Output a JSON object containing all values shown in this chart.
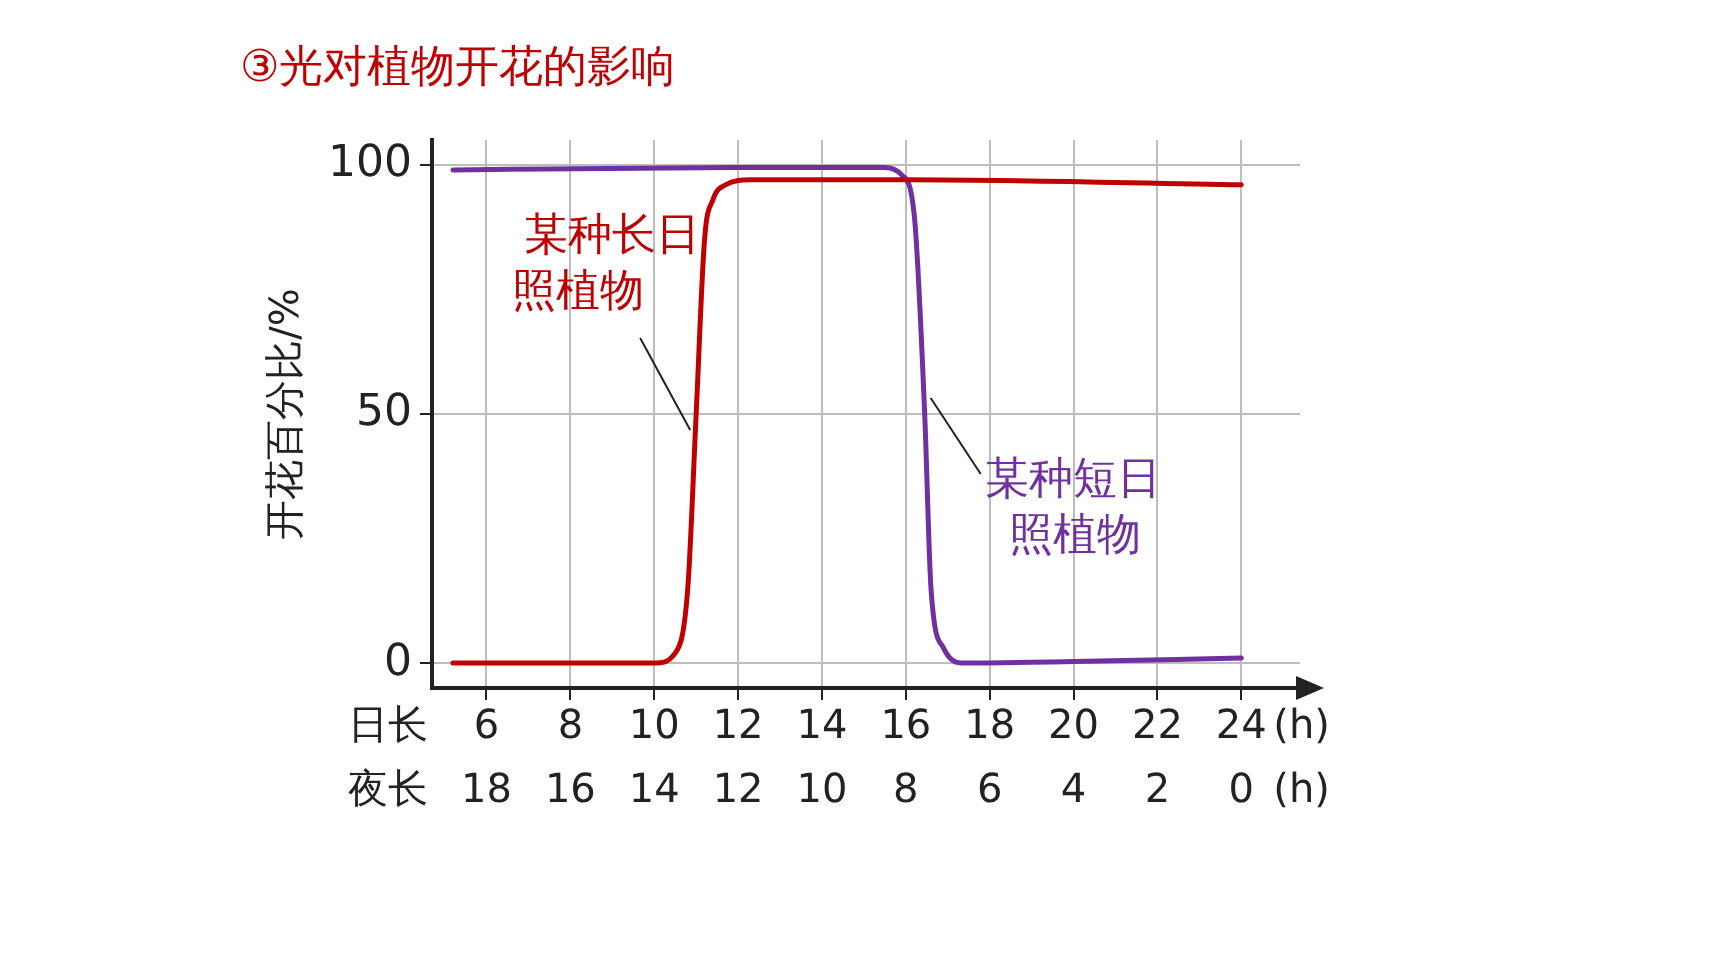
{
  "chart_data": {
    "type": "line",
    "title": "③光对植物开花的影响",
    "xlabel": "日长",
    "x2label": "夜长",
    "ylabel": "开花百分比/%",
    "annotations": [
      "(h)",
      "(h)"
    ],
    "xlim": [
      4.7,
      25.4
    ],
    "xticks": [
      6,
      8,
      10,
      12,
      14,
      16,
      18,
      20,
      22,
      24
    ],
    "x2lim": [
      19.3,
      -1.4
    ],
    "x2ticks": [
      18,
      16,
      14,
      12,
      10,
      8,
      6,
      4,
      2,
      0
    ],
    "ylim": [
      -5,
      105
    ],
    "yticks": [
      0,
      50,
      100
    ],
    "grid": true,
    "legend": false,
    "marker": "none",
    "line_style": "solid",
    "series": [
      {
        "name": "某种长日照植物",
        "color": "#c00000",
        "x": [
          5.2,
          10,
          10.5,
          10.8,
          11,
          11.2,
          11.4,
          11.7,
          12.3,
          16,
          24
        ],
        "values": [
          0,
          0,
          2,
          15,
          50,
          85,
          93,
          96,
          97,
          97,
          96
        ]
      },
      {
        "name": "某种短日照植物",
        "color": "#7030a0",
        "x": [
          5.2,
          12,
          15.5,
          15.9,
          16.2,
          16.45,
          16.6,
          16.9,
          17.4,
          20,
          24
        ],
        "values": [
          99,
          99.5,
          99.5,
          98,
          90,
          50,
          15,
          3,
          0,
          0.3,
          1
        ]
      }
    ]
  }
}
